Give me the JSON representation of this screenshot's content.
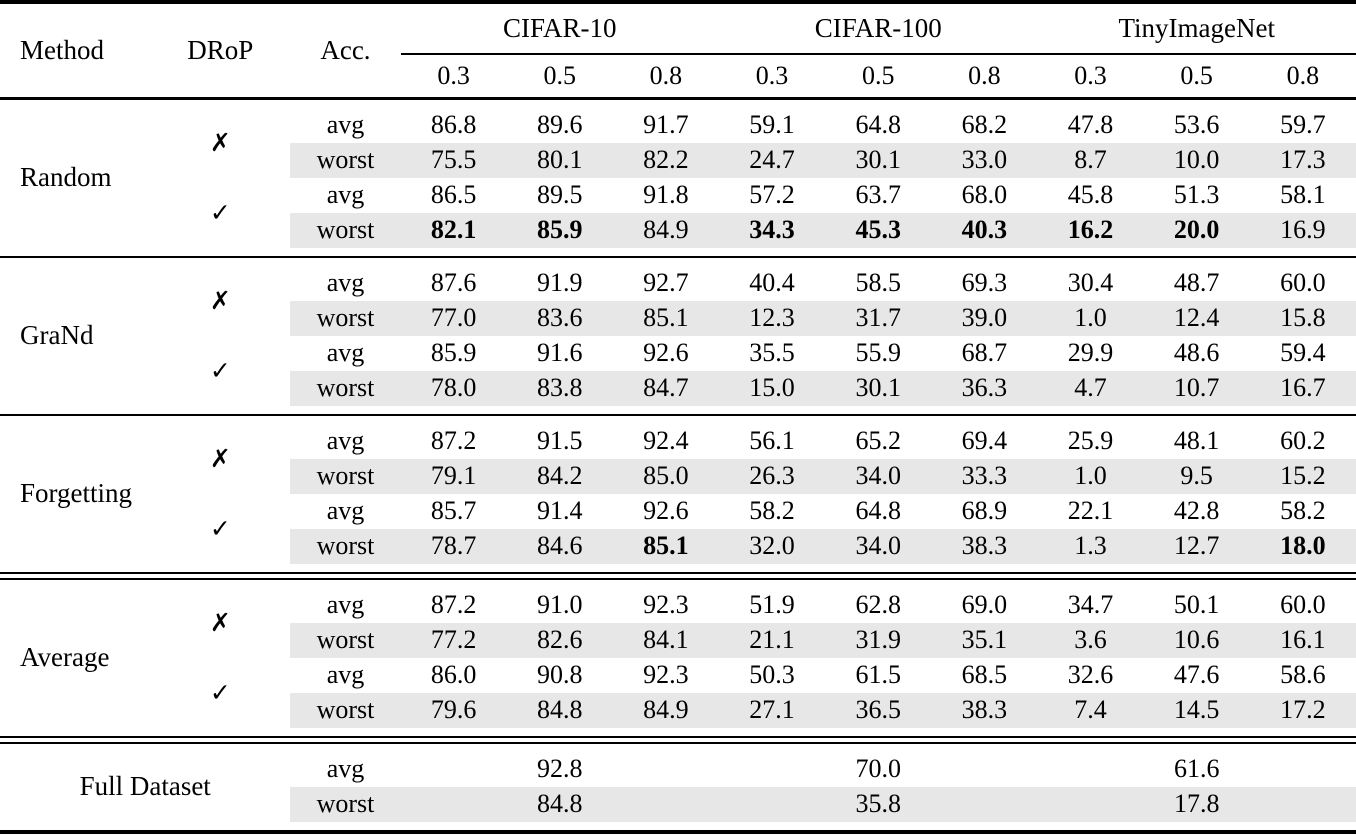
{
  "header": {
    "method": "Method",
    "drop": "DRoP",
    "acc": "Acc.",
    "datasets": [
      {
        "label": "CIFAR-10",
        "ratios": [
          "0.3",
          "0.5",
          "0.8"
        ]
      },
      {
        "label": "CIFAR-100",
        "ratios": [
          "0.3",
          "0.5",
          "0.8"
        ]
      },
      {
        "label": "TinyImageNet",
        "ratios": [
          "0.3",
          "0.5",
          "0.8"
        ]
      }
    ]
  },
  "marks": {
    "no": "✗",
    "yes": "✓"
  },
  "acc_labels": {
    "avg": "avg",
    "worst": "worst"
  },
  "colors": {
    "shade": "#e7e7e7",
    "rule": "#000000",
    "text": "#000000",
    "background": "#ffffff"
  },
  "sections": [
    {
      "type": "group",
      "rule_above": "none",
      "method": "Random",
      "rows": [
        {
          "drop": "no",
          "acc": "avg",
          "shaded": false,
          "bold": [],
          "values": [
            "86.8",
            "89.6",
            "91.7",
            "59.1",
            "64.8",
            "68.2",
            "47.8",
            "53.6",
            "59.7"
          ]
        },
        {
          "drop": "no",
          "acc": "worst",
          "shaded": true,
          "bold": [],
          "values": [
            "75.5",
            "80.1",
            "82.2",
            "24.7",
            "30.1",
            "33.0",
            "8.7",
            "10.0",
            "17.3"
          ]
        },
        {
          "drop": "yes",
          "acc": "avg",
          "shaded": false,
          "bold": [],
          "values": [
            "86.5",
            "89.5",
            "91.8",
            "57.2",
            "63.7",
            "68.0",
            "45.8",
            "51.3",
            "58.1"
          ]
        },
        {
          "drop": "yes",
          "acc": "worst",
          "shaded": true,
          "bold": [
            0,
            1,
            3,
            4,
            5,
            6,
            7
          ],
          "values": [
            "82.1",
            "85.9",
            "84.9",
            "34.3",
            "45.3",
            "40.3",
            "16.2",
            "20.0",
            "16.9"
          ]
        }
      ]
    },
    {
      "type": "group",
      "rule_above": "single",
      "method": "GraNd",
      "rows": [
        {
          "drop": "no",
          "acc": "avg",
          "shaded": false,
          "bold": [],
          "values": [
            "87.6",
            "91.9",
            "92.7",
            "40.4",
            "58.5",
            "69.3",
            "30.4",
            "48.7",
            "60.0"
          ]
        },
        {
          "drop": "no",
          "acc": "worst",
          "shaded": true,
          "bold": [],
          "values": [
            "77.0",
            "83.6",
            "85.1",
            "12.3",
            "31.7",
            "39.0",
            "1.0",
            "12.4",
            "15.8"
          ]
        },
        {
          "drop": "yes",
          "acc": "avg",
          "shaded": false,
          "bold": [],
          "values": [
            "85.9",
            "91.6",
            "92.6",
            "35.5",
            "55.9",
            "68.7",
            "29.9",
            "48.6",
            "59.4"
          ]
        },
        {
          "drop": "yes",
          "acc": "worst",
          "shaded": true,
          "bold": [],
          "values": [
            "78.0",
            "83.8",
            "84.7",
            "15.0",
            "30.1",
            "36.3",
            "4.7",
            "10.7",
            "16.7"
          ]
        }
      ]
    },
    {
      "type": "group",
      "rule_above": "single",
      "method": "Forgetting",
      "rows": [
        {
          "drop": "no",
          "acc": "avg",
          "shaded": false,
          "bold": [],
          "values": [
            "87.2",
            "91.5",
            "92.4",
            "56.1",
            "65.2",
            "69.4",
            "25.9",
            "48.1",
            "60.2"
          ]
        },
        {
          "drop": "no",
          "acc": "worst",
          "shaded": true,
          "bold": [],
          "values": [
            "79.1",
            "84.2",
            "85.0",
            "26.3",
            "34.0",
            "33.3",
            "1.0",
            "9.5",
            "15.2"
          ]
        },
        {
          "drop": "yes",
          "acc": "avg",
          "shaded": false,
          "bold": [],
          "values": [
            "85.7",
            "91.4",
            "92.6",
            "58.2",
            "64.8",
            "68.9",
            "22.1",
            "42.8",
            "58.2"
          ]
        },
        {
          "drop": "yes",
          "acc": "worst",
          "shaded": true,
          "bold": [
            2,
            8
          ],
          "values": [
            "78.7",
            "84.6",
            "85.1",
            "32.0",
            "34.0",
            "38.3",
            "1.3",
            "12.7",
            "18.0"
          ]
        }
      ]
    },
    {
      "type": "group",
      "rule_above": "double",
      "method": "Average",
      "rows": [
        {
          "drop": "no",
          "acc": "avg",
          "shaded": false,
          "bold": [],
          "values": [
            "87.2",
            "91.0",
            "92.3",
            "51.9",
            "62.8",
            "69.0",
            "34.7",
            "50.1",
            "60.0"
          ]
        },
        {
          "drop": "no",
          "acc": "worst",
          "shaded": true,
          "bold": [],
          "values": [
            "77.2",
            "82.6",
            "84.1",
            "21.1",
            "31.9",
            "35.1",
            "3.6",
            "10.6",
            "16.1"
          ]
        },
        {
          "drop": "yes",
          "acc": "avg",
          "shaded": false,
          "bold": [],
          "values": [
            "86.0",
            "90.8",
            "92.3",
            "50.3",
            "61.5",
            "68.5",
            "32.6",
            "47.6",
            "58.6"
          ]
        },
        {
          "drop": "yes",
          "acc": "worst",
          "shaded": true,
          "bold": [],
          "values": [
            "79.6",
            "84.8",
            "84.9",
            "27.1",
            "36.5",
            "38.3",
            "7.4",
            "14.5",
            "17.2"
          ]
        }
      ]
    },
    {
      "type": "full",
      "rule_above": "double",
      "method": "Full Dataset",
      "rows": [
        {
          "acc": "avg",
          "shaded": false,
          "bold": [],
          "values": [
            "92.8",
            "70.0",
            "61.6"
          ]
        },
        {
          "acc": "worst",
          "shaded": true,
          "bold": [],
          "values": [
            "84.8",
            "35.8",
            "17.8"
          ]
        }
      ]
    }
  ]
}
